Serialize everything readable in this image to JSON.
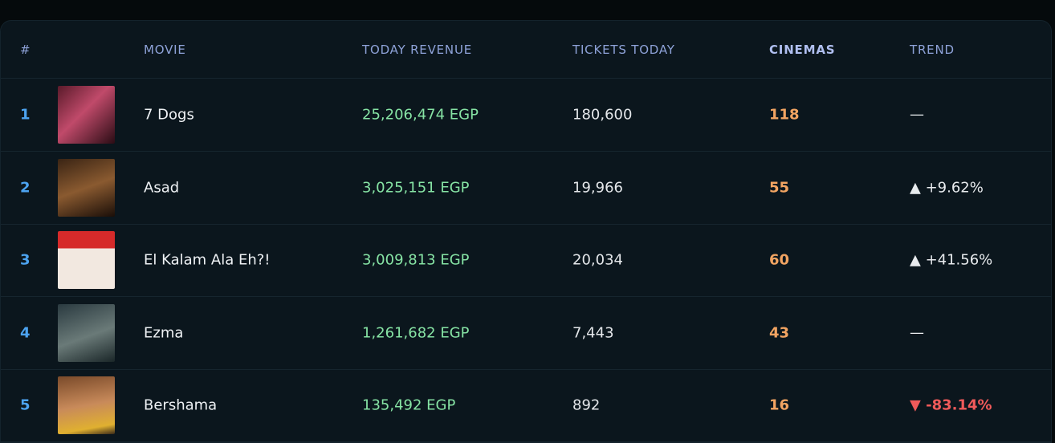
{
  "table": {
    "headers": [
      "#",
      "MOVIE",
      "TODAY REVENUE",
      "TICKETS TODAY",
      "CINEMAS",
      "TREND"
    ],
    "rows": [
      [
        "1",
        "7 Dogs",
        "25,206,474 EGP",
        "180,600",
        "118",
        "—"
      ],
      [
        "2",
        "Asad",
        "3,025,151 EGP",
        "19,966",
        "55",
        "▲ +9.62%"
      ],
      [
        "3",
        "El Kalam Ala Eh?!",
        "3,009,813 EGP",
        "20,034",
        "60",
        "▲ +41.56%"
      ],
      [
        "4",
        "Ezma",
        "1,261,682 EGP",
        "7,443",
        "43",
        "—"
      ],
      [
        "5",
        "Bershama",
        "135,492 EGP",
        "892",
        "16",
        "▼ -83.14%"
      ]
    ]
  }
}
